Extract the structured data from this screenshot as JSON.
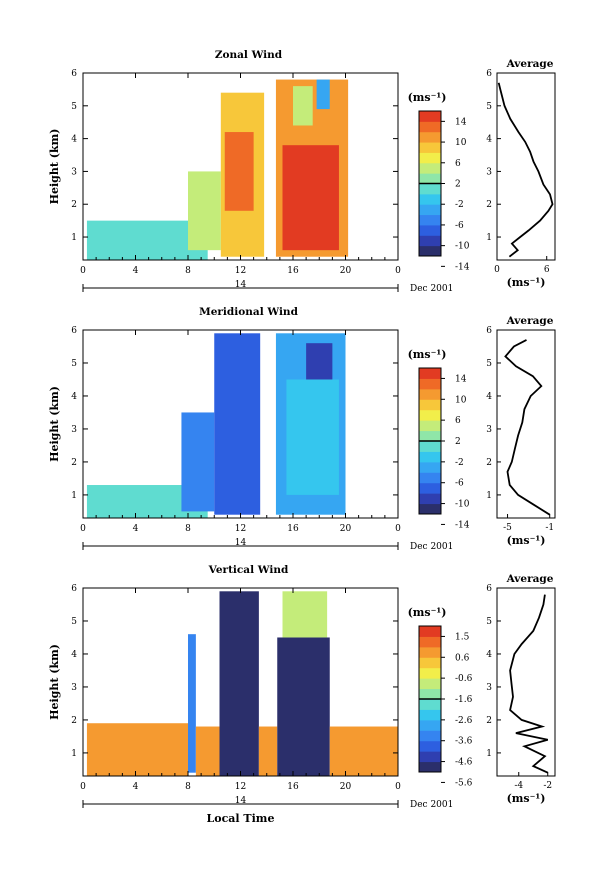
{
  "colors": {
    "palette": [
      "#2b2f6b",
      "#2f3fb0",
      "#2d5fe0",
      "#3584f0",
      "#36a6f2",
      "#35c6ee",
      "#5fdcd0",
      "#8fe6a8",
      "#c4ec7a",
      "#f2ee4a",
      "#f7c73a",
      "#f59a30",
      "#ef6a26",
      "#e23b22"
    ]
  },
  "chart_data": [
    {
      "type": "heatmap",
      "title": "Zonal Wind",
      "ylabel": "Height (km)",
      "xticks": [
        "0",
        "4",
        "8",
        "12",
        "16",
        "20",
        "0"
      ],
      "yticks": [
        "1",
        "2",
        "3",
        "4",
        "5",
        "6"
      ],
      "xlim": [
        0,
        24
      ],
      "ylim": [
        0.3,
        6
      ],
      "date_label": "14",
      "month_label": "Dec 2001",
      "colorbar": {
        "unit": "(ms⁻¹)",
        "ticks": [
          "14",
          "10",
          "6",
          "2",
          "-2",
          "-6",
          "-10",
          "-14"
        ],
        "range": [
          -14,
          14
        ]
      },
      "blocks": [
        {
          "x": [
            0.3,
            9.5
          ],
          "y": [
            0.3,
            1.5
          ],
          "value": -1
        },
        {
          "x": [
            8.0,
            10.5
          ],
          "y": [
            0.6,
            3.0
          ],
          "value": 3
        },
        {
          "x": [
            10.5,
            13.8
          ],
          "y": [
            0.4,
            5.4
          ],
          "value": 7
        },
        {
          "x": [
            10.8,
            13.0
          ],
          "y": [
            1.8,
            4.2
          ],
          "value": 11
        },
        {
          "x": [
            14.7,
            20.2
          ],
          "y": [
            0.4,
            5.8
          ],
          "value": 9
        },
        {
          "x": [
            15.2,
            19.5
          ],
          "y": [
            0.6,
            3.8
          ],
          "value": 12
        },
        {
          "x": [
            16.0,
            17.5
          ],
          "y": [
            4.4,
            5.6
          ],
          "value": 2
        },
        {
          "x": [
            17.8,
            18.8
          ],
          "y": [
            4.9,
            5.8
          ],
          "value": -6
        }
      ],
      "profile": {
        "title": "Average",
        "xlabel": "(ms⁻¹)",
        "xticks": [
          "0",
          "6"
        ],
        "xlim": [
          0,
          7
        ],
        "y": [
          0.4,
          0.6,
          0.8,
          1.0,
          1.2,
          1.5,
          1.8,
          2.0,
          2.3,
          2.6,
          3.0,
          3.3,
          3.6,
          3.9,
          4.2,
          4.6,
          5.0,
          5.3,
          5.5,
          5.7
        ],
        "x": [
          1.5,
          2.5,
          1.8,
          2.8,
          3.8,
          5.2,
          6.2,
          6.7,
          6.4,
          5.6,
          5.0,
          4.4,
          4.0,
          3.4,
          2.6,
          1.6,
          0.9,
          0.6,
          0.4,
          0.2
        ]
      }
    },
    {
      "type": "heatmap",
      "title": "Meridional Wind",
      "ylabel": "Height (km)",
      "xticks": [
        "0",
        "4",
        "8",
        "12",
        "16",
        "20",
        "0"
      ],
      "yticks": [
        "1",
        "2",
        "3",
        "4",
        "5",
        "6"
      ],
      "xlim": [
        0,
        24
      ],
      "ylim": [
        0.3,
        6
      ],
      "date_label": "14",
      "month_label": "Dec 2001",
      "colorbar": {
        "unit": "(ms⁻¹)",
        "ticks": [
          "14",
          "10",
          "6",
          "2",
          "-2",
          "-6",
          "-10",
          "-14"
        ],
        "range": [
          -14,
          14
        ]
      },
      "blocks": [
        {
          "x": [
            0.3,
            9.5
          ],
          "y": [
            0.3,
            1.3
          ],
          "value": -2
        },
        {
          "x": [
            7.5,
            10.0
          ],
          "y": [
            0.5,
            3.5
          ],
          "value": -8
        },
        {
          "x": [
            10.0,
            13.5
          ],
          "y": [
            0.4,
            5.9
          ],
          "value": -10
        },
        {
          "x": [
            14.7,
            20.0
          ],
          "y": [
            0.4,
            5.9
          ],
          "value": -6
        },
        {
          "x": [
            15.5,
            19.5
          ],
          "y": [
            1.0,
            4.5
          ],
          "value": -3
        },
        {
          "x": [
            17.0,
            19.0
          ],
          "y": [
            4.5,
            5.6
          ],
          "value": -11
        }
      ],
      "profile": {
        "title": "Average",
        "xlabel": "(ms⁻¹)",
        "xticks": [
          "-5",
          "-1"
        ],
        "xlim": [
          -6,
          -0.5
        ],
        "y": [
          0.4,
          0.7,
          1.0,
          1.3,
          1.7,
          2.0,
          2.4,
          2.8,
          3.2,
          3.6,
          4.0,
          4.3,
          4.6,
          4.9,
          5.2,
          5.5,
          5.7
        ],
        "x": [
          -1.0,
          -2.5,
          -4.0,
          -4.8,
          -5.0,
          -4.6,
          -4.3,
          -4.0,
          -3.6,
          -3.4,
          -2.8,
          -1.8,
          -2.6,
          -4.2,
          -5.2,
          -4.4,
          -3.2
        ]
      }
    },
    {
      "type": "heatmap",
      "title": "Vertical Wind",
      "ylabel": "Height (km)",
      "xlabel": "Local Time",
      "xticks": [
        "0",
        "4",
        "8",
        "12",
        "16",
        "20",
        "0"
      ],
      "yticks": [
        "1",
        "2",
        "3",
        "4",
        "5",
        "6"
      ],
      "xlim": [
        0,
        24
      ],
      "ylim": [
        0.3,
        6
      ],
      "date_label": "14",
      "month_label": "Dec 2001",
      "colorbar": {
        "unit": "(ms⁻¹)",
        "ticks": [
          "1.5",
          "0.6",
          "-0.6",
          "-1.6",
          "-2.6",
          "-3.6",
          "-4.6",
          "-5.6"
        ],
        "range": [
          -6.1,
          2.1
        ]
      },
      "blocks": [
        {
          "x": [
            0.3,
            8.0
          ],
          "y": [
            0.3,
            1.9
          ],
          "value": 0.6
        },
        {
          "x": [
            8.0,
            8.6
          ],
          "y": [
            0.4,
            4.6
          ],
          "value": -4.0
        },
        {
          "x": [
            8.6,
            10.4
          ],
          "y": [
            0.3,
            1.8
          ],
          "value": 0.8
        },
        {
          "x": [
            10.4,
            13.4
          ],
          "y": [
            0.3,
            5.9
          ],
          "value": -5.8
        },
        {
          "x": [
            13.4,
            14.8
          ],
          "y": [
            0.3,
            1.8
          ],
          "value": 0.6
        },
        {
          "x": [
            14.8,
            18.8
          ],
          "y": [
            0.3,
            4.5
          ],
          "value": -5.8
        },
        {
          "x": [
            15.2,
            18.6
          ],
          "y": [
            4.5,
            5.9
          ],
          "value": -1.2
        },
        {
          "x": [
            18.8,
            24.0
          ],
          "y": [
            0.3,
            1.8
          ],
          "value": 0.6
        }
      ],
      "profile": {
        "title": "Average",
        "xlabel": "(ms⁻¹)",
        "xticks": [
          "-4",
          "-2"
        ],
        "xlim": [
          -5.5,
          -1.5
        ],
        "y": [
          0.4,
          0.6,
          0.9,
          1.2,
          1.4,
          1.6,
          1.8,
          2.0,
          2.3,
          2.7,
          3.1,
          3.5,
          4.0,
          4.3,
          4.7,
          5.1,
          5.5,
          5.8
        ],
        "x": [
          -2.0,
          -3.0,
          -2.2,
          -3.6,
          -2.0,
          -4.2,
          -2.4,
          -3.8,
          -4.6,
          -4.4,
          -4.5,
          -4.6,
          -4.3,
          -3.8,
          -3.0,
          -2.6,
          -2.3,
          -2.2
        ]
      }
    }
  ]
}
